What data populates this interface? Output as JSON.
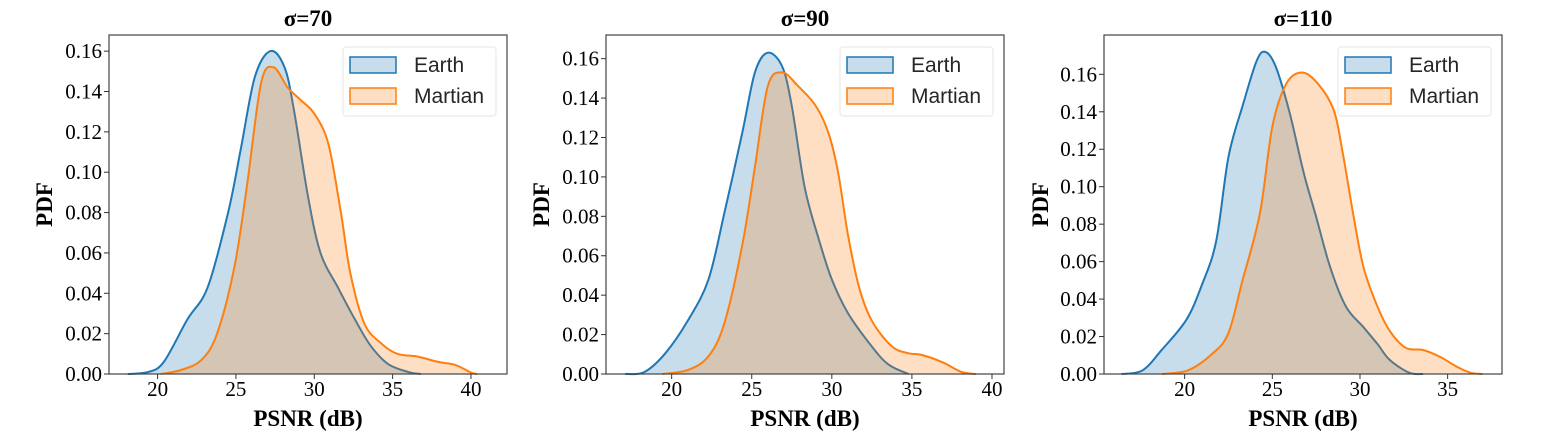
{
  "chart_data": [
    {
      "type": "area",
      "title": "σ=70",
      "xlabel": "PSNR (dB)",
      "ylabel": "PDF",
      "xlim": [
        16.9,
        42.3
      ],
      "ylim": [
        0,
        0.168
      ],
      "xticks": [
        20,
        25,
        30,
        35,
        40
      ],
      "yticks": [
        0.0,
        0.02,
        0.04,
        0.06,
        0.08,
        0.1,
        0.12,
        0.14,
        0.16
      ],
      "grid": false,
      "legend_position": "top-right",
      "series": [
        {
          "name": "Earth",
          "color": "#1f77b4",
          "x": [
            18.1,
            19.4,
            20.4,
            21.9,
            23.2,
            24.5,
            25.3,
            26.2,
            27.2,
            28.1,
            28.7,
            29.6,
            30.4,
            31.5,
            32.6,
            33.6,
            34.7,
            36.0,
            36.8
          ],
          "y": [
            0,
            0.001,
            0.006,
            0.027,
            0.043,
            0.08,
            0.111,
            0.147,
            0.16,
            0.152,
            0.131,
            0.088,
            0.06,
            0.043,
            0.027,
            0.014,
            0.005,
            0.001,
            0
          ]
        },
        {
          "name": "Martian",
          "color": "#ff7f0e",
          "x": [
            20.2,
            21.5,
            22.8,
            23.8,
            24.9,
            25.7,
            26.6,
            27.4,
            28.3,
            29.1,
            30.0,
            30.9,
            31.7,
            32.3,
            33.2,
            34.3,
            35.3,
            36.6,
            37.9,
            39.0,
            40.0,
            40.4
          ],
          "y": [
            0,
            0.002,
            0.007,
            0.02,
            0.053,
            0.093,
            0.144,
            0.152,
            0.142,
            0.136,
            0.129,
            0.114,
            0.08,
            0.05,
            0.025,
            0.015,
            0.01,
            0.0086,
            0.006,
            0.0045,
            0.0007,
            0
          ]
        }
      ]
    },
    {
      "type": "area",
      "title": "σ=90",
      "xlabel": "PSNR (dB)",
      "ylabel": "PDF",
      "xlim": [
        15.9,
        40.75
      ],
      "ylim": [
        0,
        0.172
      ],
      "xticks": [
        20,
        25,
        30,
        35,
        40
      ],
      "yticks": [
        0.0,
        0.02,
        0.04,
        0.06,
        0.08,
        0.1,
        0.12,
        0.14,
        0.16
      ],
      "grid": false,
      "legend_position": "top-right",
      "series": [
        {
          "name": "Earth",
          "color": "#1f77b4",
          "x": [
            17.1,
            18.3,
            19.6,
            21.0,
            22.3,
            23.3,
            24.4,
            25.2,
            26.0,
            26.9,
            27.5,
            28.3,
            29.2,
            30.0,
            31.0,
            32.3,
            33.5,
            34.8
          ],
          "y": [
            0,
            0.001,
            0.0105,
            0.027,
            0.048,
            0.082,
            0.122,
            0.153,
            0.163,
            0.156,
            0.136,
            0.095,
            0.068,
            0.048,
            0.031,
            0.016,
            0.005,
            0
          ]
        },
        {
          "name": "Martian",
          "color": "#ff7f0e",
          "x": [
            19.4,
            21.0,
            22.3,
            23.3,
            24.4,
            25.2,
            26.0,
            26.9,
            27.9,
            29.0,
            29.8,
            30.4,
            31.0,
            31.7,
            32.5,
            33.75,
            34.8,
            35.6,
            36.9,
            38.1,
            39.0
          ],
          "y": [
            0,
            0.002,
            0.009,
            0.026,
            0.065,
            0.105,
            0.146,
            0.153,
            0.146,
            0.136,
            0.122,
            0.102,
            0.071,
            0.044,
            0.027,
            0.014,
            0.0105,
            0.0097,
            0.006,
            0.001,
            0
          ]
        }
      ]
    },
    {
      "type": "area",
      "title": "σ=110",
      "xlabel": "PSNR (dB)",
      "ylabel": "PDF",
      "xlim": [
        15.4,
        38.1
      ],
      "ylim": [
        0,
        0.181
      ],
      "xticks": [
        20,
        25,
        30,
        35
      ],
      "yticks": [
        0.0,
        0.02,
        0.04,
        0.06,
        0.08,
        0.1,
        0.12,
        0.14,
        0.16
      ],
      "grid": false,
      "legend_position": "top-right",
      "series": [
        {
          "name": "Earth",
          "color": "#1f77b4",
          "x": [
            16.4,
            17.6,
            18.7,
            20.1,
            21.0,
            21.8,
            22.5,
            23.3,
            24.1,
            24.6,
            25.2,
            26.0,
            26.8,
            27.5,
            28.3,
            29.2,
            30.2,
            31.0,
            31.7,
            32.8,
            33.6
          ],
          "y": [
            0,
            0.002,
            0.013,
            0.029,
            0.048,
            0.071,
            0.116,
            0.143,
            0.167,
            0.172,
            0.164,
            0.139,
            0.107,
            0.084,
            0.057,
            0.036,
            0.025,
            0.016,
            0.0075,
            0.0007,
            0
          ]
        },
        {
          "name": "Martian",
          "color": "#ff7f0e",
          "x": [
            18.7,
            20.2,
            21.6,
            22.5,
            23.3,
            24.3,
            25.0,
            25.8,
            26.7,
            27.6,
            28.5,
            29.0,
            29.6,
            30.2,
            31.0,
            31.7,
            32.6,
            33.6,
            34.6,
            35.5,
            36.3,
            37.0
          ],
          "y": [
            0,
            0.002,
            0.011,
            0.022,
            0.05,
            0.086,
            0.132,
            0.155,
            0.161,
            0.155,
            0.141,
            0.119,
            0.086,
            0.057,
            0.036,
            0.023,
            0.014,
            0.0128,
            0.009,
            0.004,
            0.0007,
            0
          ]
        }
      ]
    }
  ]
}
